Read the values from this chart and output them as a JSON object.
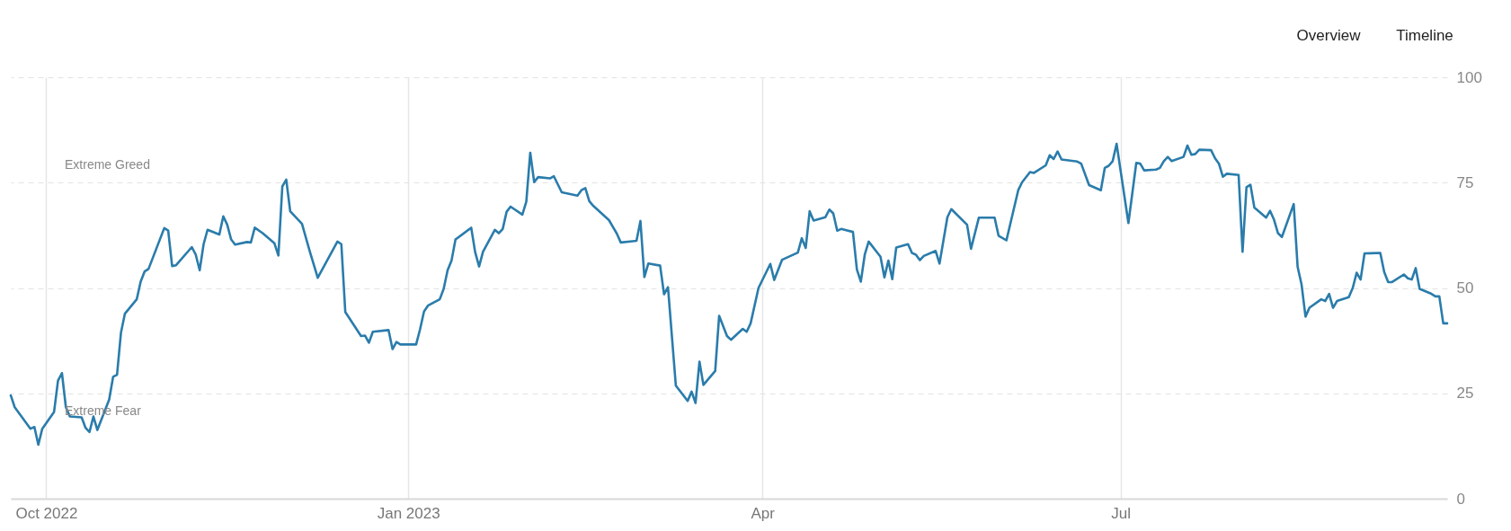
{
  "chart_data": {
    "type": "line",
    "x": [
      "2022-09-22",
      "2022-09-23",
      "2022-09-27",
      "2022-09-28",
      "2022-09-29",
      "2022-09-30",
      "2022-10-03",
      "2022-10-04",
      "2022-10-05",
      "2022-10-06",
      "2022-10-07",
      "2022-10-10",
      "2022-10-11",
      "2022-10-12",
      "2022-10-13",
      "2022-10-14",
      "2022-10-17",
      "2022-10-18",
      "2022-10-19",
      "2022-10-20",
      "2022-10-21",
      "2022-10-24",
      "2022-10-25",
      "2022-10-26",
      "2022-10-27",
      "2022-10-31",
      "2022-11-01",
      "2022-11-02",
      "2022-11-03",
      "2022-11-07",
      "2022-11-08",
      "2022-11-09",
      "2022-11-10",
      "2022-11-11",
      "2022-11-14",
      "2022-11-15",
      "2022-11-16",
      "2022-11-17",
      "2022-11-18",
      "2022-11-21",
      "2022-11-22",
      "2022-11-23",
      "2022-11-25",
      "2022-11-28",
      "2022-11-29",
      "2022-11-30",
      "2022-12-01",
      "2022-12-02",
      "2022-12-05",
      "2022-12-07",
      "2022-12-09",
      "2022-12-14",
      "2022-12-15",
      "2022-12-16",
      "2022-12-20",
      "2022-12-21",
      "2022-12-22",
      "2022-12-23",
      "2022-12-27",
      "2022-12-28",
      "2022-12-29",
      "2022-12-30",
      "2023-01-03",
      "2023-01-04",
      "2023-01-05",
      "2023-01-06",
      "2023-01-09",
      "2023-01-10",
      "2023-01-11",
      "2023-01-12",
      "2023-01-13",
      "2023-01-17",
      "2023-01-18",
      "2023-01-19",
      "2023-01-20",
      "2023-01-23",
      "2023-01-24",
      "2023-01-25",
      "2023-01-26",
      "2023-01-27",
      "2023-01-30",
      "2023-01-31",
      "2023-02-01",
      "2023-02-02",
      "2023-02-03",
      "2023-02-06",
      "2023-02-07",
      "2023-02-09",
      "2023-02-13",
      "2023-02-14",
      "2023-02-15",
      "2023-02-16",
      "2023-02-17",
      "2023-02-21",
      "2023-02-23",
      "2023-02-24",
      "2023-02-27",
      "2023-02-28",
      "2023-03-01",
      "2023-03-02",
      "2023-03-03",
      "2023-03-06",
      "2023-03-07",
      "2023-03-08",
      "2023-03-10",
      "2023-03-13",
      "2023-03-14",
      "2023-03-15",
      "2023-03-16",
      "2023-03-17",
      "2023-03-20",
      "2023-03-21",
      "2023-03-23",
      "2023-03-24",
      "2023-03-27",
      "2023-03-28",
      "2023-03-29",
      "2023-03-31",
      "2023-04-03",
      "2023-04-04",
      "2023-04-06",
      "2023-04-10",
      "2023-04-11",
      "2023-04-12",
      "2023-04-13",
      "2023-04-14",
      "2023-04-17",
      "2023-04-18",
      "2023-04-19",
      "2023-04-20",
      "2023-04-21",
      "2023-04-24",
      "2023-04-25",
      "2023-04-26",
      "2023-04-27",
      "2023-04-28",
      "2023-05-01",
      "2023-05-02",
      "2023-05-03",
      "2023-05-04",
      "2023-05-05",
      "2023-05-08",
      "2023-05-09",
      "2023-05-10",
      "2023-05-11",
      "2023-05-12",
      "2023-05-15",
      "2023-05-16",
      "2023-05-18",
      "2023-05-19",
      "2023-05-23",
      "2023-05-24",
      "2023-05-26",
      "2023-05-30",
      "2023-05-31",
      "2023-06-02",
      "2023-06-05",
      "2023-06-06",
      "2023-06-08",
      "2023-06-09",
      "2023-06-12",
      "2023-06-13",
      "2023-06-14",
      "2023-06-15",
      "2023-06-16",
      "2023-06-20",
      "2023-06-21",
      "2023-06-23",
      "2023-06-26",
      "2023-06-27",
      "2023-06-28",
      "2023-06-29",
      "2023-06-30",
      "2023-07-03",
      "2023-07-05",
      "2023-07-06",
      "2023-07-07",
      "2023-07-10",
      "2023-07-11",
      "2023-07-12",
      "2023-07-13",
      "2023-07-14",
      "2023-07-17",
      "2023-07-18",
      "2023-07-19",
      "2023-07-20",
      "2023-07-21",
      "2023-07-24",
      "2023-07-25",
      "2023-07-26",
      "2023-07-27",
      "2023-07-28",
      "2023-07-31",
      "2023-08-01",
      "2023-08-02",
      "2023-08-03",
      "2023-08-04",
      "2023-08-07",
      "2023-08-08",
      "2023-08-09",
      "2023-08-10",
      "2023-08-11",
      "2023-08-14",
      "2023-08-15",
      "2023-08-16",
      "2023-08-17",
      "2023-08-18",
      "2023-08-21",
      "2023-08-22",
      "2023-08-23",
      "2023-08-24",
      "2023-08-25",
      "2023-08-28",
      "2023-08-29",
      "2023-08-30",
      "2023-08-31",
      "2023-09-01",
      "2023-09-05",
      "2023-09-06",
      "2023-09-07",
      "2023-09-08",
      "2023-09-11",
      "2023-09-12",
      "2023-09-13",
      "2023-09-14",
      "2023-09-15",
      "2023-09-18",
      "2023-09-19",
      "2023-09-20",
      "2023-09-21",
      "2023-09-22"
    ],
    "series": [
      {
        "color": "#2a7cab",
        "values": [
          24.5,
          21.7,
          16.6,
          17,
          12.8,
          16.6,
          20.6,
          28,
          29.8,
          21.7,
          19.5,
          19.3,
          16.8,
          15.8,
          19.5,
          16.3,
          23.5,
          28.9,
          29.4,
          39.4,
          43.9,
          47.3,
          51.5,
          53.9,
          54.5,
          64.2,
          63.6,
          55.2,
          55.4,
          59.7,
          57.9,
          54.2,
          60.4,
          63.8,
          62.7,
          67,
          65,
          61.5,
          60.3,
          60.9,
          60.8,
          64.3,
          63,
          60.6,
          57.7,
          74.1,
          75.7,
          68.2,
          65.2,
          58.6,
          52.4,
          61,
          60.4,
          44.3,
          38.6,
          38.7,
          37,
          39.6,
          40,
          35.5,
          37.2,
          36.6,
          36.6,
          40.2,
          44.4,
          45.8,
          47.3,
          49.8,
          54.2,
          56.5,
          61.5,
          64.3,
          58.5,
          55.1,
          58.6,
          63.8,
          63,
          64,
          68.1,
          69.3,
          67.4,
          70.5,
          82.1,
          75.1,
          76.3,
          76,
          76.5,
          72.7,
          71.9,
          73.2,
          73.7,
          70.6,
          69.5,
          66.1,
          62.9,
          60.8,
          61.1,
          61.2,
          65.9,
          52.6,
          55.8,
          55.3,
          48.5,
          50.2,
          26.8,
          23.2,
          25.4,
          22.7,
          32.5,
          27,
          30.3,
          43.4,
          38.6,
          37.7,
          40.3,
          39.6,
          41.6,
          50,
          55.7,
          51.9,
          56.7,
          58.4,
          61.8,
          59.5,
          68.2,
          66,
          66.8,
          68.6,
          67.7,
          63.6,
          64,
          63.3,
          54.4,
          51.5,
          57.9,
          61,
          57.4,
          52.5,
          56.5,
          52.1,
          59.6,
          60.4,
          58.3,
          57.9,
          56.6,
          57.6,
          58.8,
          55.8,
          66.8,
          68.7,
          65,
          59.3,
          66.7,
          66.7,
          62.4,
          61.3,
          73.2,
          75.1,
          77.5,
          77.3,
          79.1,
          81.5,
          80.6,
          82.4,
          80.5,
          80,
          79.5,
          74.4,
          73.2,
          78.5,
          79,
          80.1,
          84.2,
          65.4,
          79.7,
          79.5,
          77.9,
          78.1,
          78.5,
          80.1,
          81.1,
          80.1,
          81.1,
          83.8,
          81.6,
          81.8,
          82.8,
          82.7,
          80.8,
          79.5,
          76.4,
          77.1,
          76.8,
          58.6,
          73.9,
          74.5,
          69.1,
          66.7,
          68.3,
          66.2,
          63,
          62.1,
          69.9,
          55,
          50.8,
          43.2,
          45.3,
          47.3,
          46.9,
          48.6,
          45.3,
          46.9,
          47.8,
          50,
          53.6,
          52,
          58.2,
          58.3,
          53.8,
          51.4,
          51.4,
          53.2,
          52.3,
          52,
          54.7,
          49.8,
          48.6,
          48,
          48,
          41.6,
          41.6
        ]
      }
    ],
    "xlim": [
      "2022-09-22",
      "2023-09-22"
    ],
    "xticks": [
      {
        "value": "2022-10-01",
        "label": "Oct 2022"
      },
      {
        "value": "2023-01-01",
        "label": "Jan 2023"
      },
      {
        "value": "2023-04-01",
        "label": "Apr"
      },
      {
        "value": "2023-07-01",
        "label": "Jul"
      }
    ],
    "ylim": [
      0,
      100
    ],
    "yticks": [
      0,
      25,
      50,
      75,
      100
    ],
    "grid": true,
    "line_style": "solid",
    "annotations": [
      "Extreme Greed",
      "Extreme Fear",
      "Overview",
      "Timeline"
    ]
  }
}
